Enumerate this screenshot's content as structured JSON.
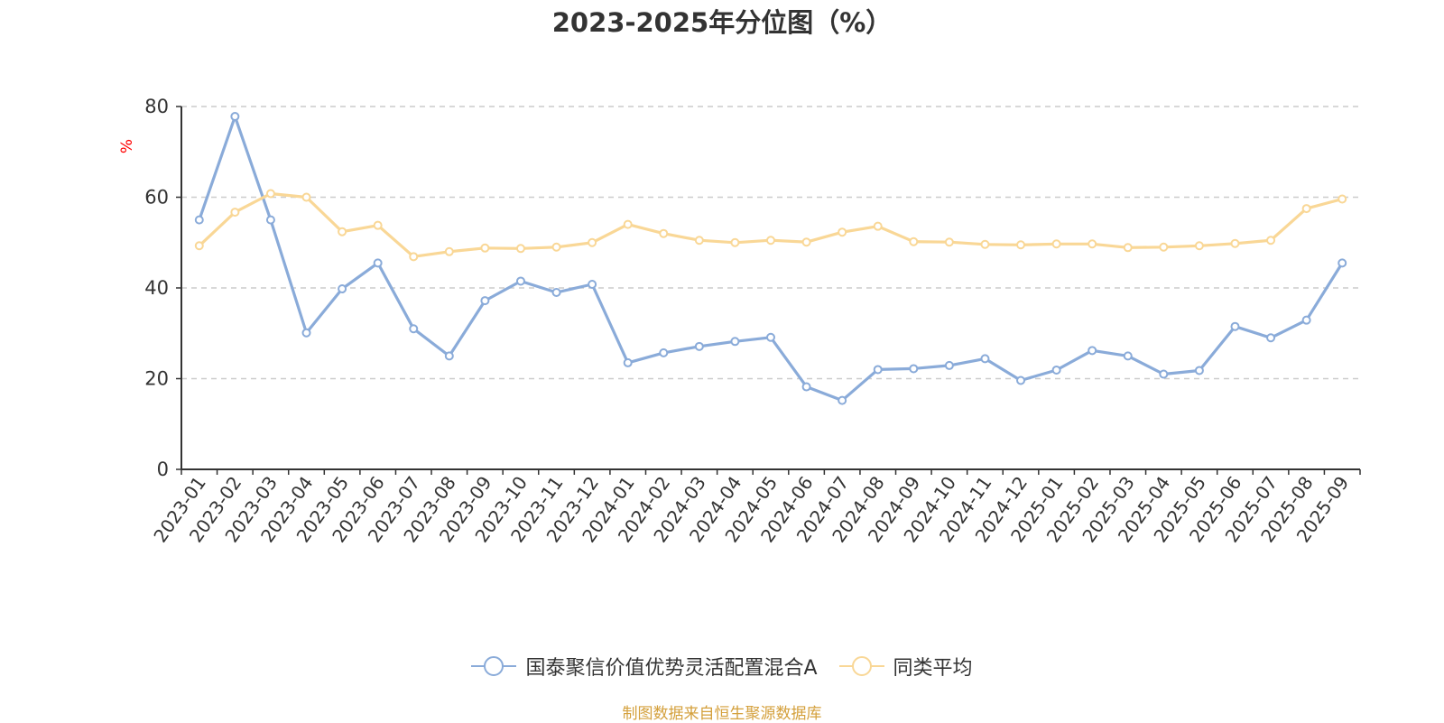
{
  "chart_data": {
    "type": "line",
    "title": "2023-2025年分位图（%）",
    "ylabel": "%",
    "xlabel": "",
    "ylim": [
      0,
      80
    ],
    "yticks": [
      0,
      20,
      40,
      60,
      80
    ],
    "grid": true,
    "legend_position": "bottom",
    "categories": [
      "2023-01",
      "2023-02",
      "2023-03",
      "2023-04",
      "2023-05",
      "2023-06",
      "2023-07",
      "2023-08",
      "2023-09",
      "2023-10",
      "2023-11",
      "2023-12",
      "2024-01",
      "2024-02",
      "2024-03",
      "2024-04",
      "2024-05",
      "2024-06",
      "2024-07",
      "2024-08",
      "2024-09",
      "2024-10",
      "2024-11",
      "2024-12",
      "2025-01",
      "2025-02",
      "2025-03",
      "2025-04",
      "2025-05",
      "2025-06",
      "2025-07",
      "2025-08",
      "2025-09"
    ],
    "series": [
      {
        "name": "国泰聚信价值优势灵活配置混合A",
        "color": "#8aabd9",
        "values": [
          55,
          77.8,
          55,
          30.1,
          39.8,
          45.5,
          31,
          25,
          37.2,
          41.5,
          39,
          40.8,
          23.5,
          25.7,
          27.1,
          28.2,
          29.1,
          18.2,
          15.2,
          22,
          22.2,
          22.9,
          24.4,
          19.6,
          21.9,
          26.2,
          25,
          21,
          21.8,
          31.5,
          29,
          32.9,
          45.5
        ]
      },
      {
        "name": "同类平均",
        "color": "#f9d796",
        "values": [
          49.3,
          56.7,
          60.8,
          60,
          52.4,
          53.8,
          46.9,
          48,
          48.8,
          48.7,
          49,
          50,
          54,
          52,
          50.5,
          50,
          50.5,
          50.1,
          52.3,
          53.6,
          50.2,
          50.1,
          49.6,
          49.5,
          49.7,
          49.7,
          48.9,
          49,
          49.3,
          49.8,
          50.5,
          57.5,
          59.6
        ]
      }
    ]
  },
  "source_note": "制图数据来自恒生聚源数据库"
}
